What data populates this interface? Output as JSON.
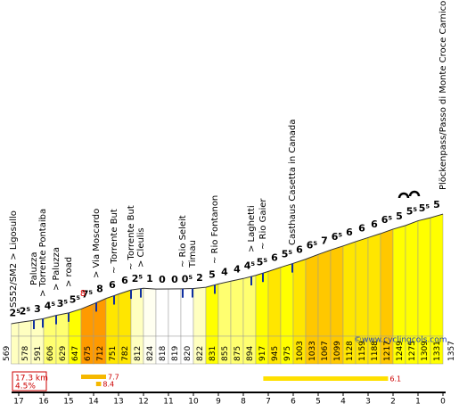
{
  "chart_data": {
    "type": "profile",
    "x": [
      17.3,
      17,
      16.5,
      16,
      15.5,
      15,
      14.5,
      14,
      13.5,
      13,
      12.5,
      12,
      11.5,
      11,
      10.5,
      10,
      9.5,
      9,
      8.5,
      8,
      7.5,
      7,
      6.5,
      6,
      5.5,
      5,
      4.5,
      4,
      3.5,
      3,
      2.5,
      2,
      1.5,
      1,
      0.5,
      0
    ],
    "elevations": [
      569,
      578,
      591,
      606,
      629,
      647,
      675,
      712,
      751,
      782,
      812,
      824,
      818,
      819,
      820,
      822,
      831,
      855,
      875,
      894,
      917,
      945,
      975,
      1003,
      1033,
      1067,
      1099,
      1128,
      1159,
      1188,
      1217,
      1249,
      1275,
      1309,
      1331,
      1357
    ],
    "gradients": [
      2.5,
      2.5,
      3,
      4.5,
      3.5,
      5.5,
      7.5,
      8,
      6,
      6,
      2.5,
      1,
      0,
      0,
      0.5,
      2,
      5,
      4,
      4,
      4.5,
      5.5,
      6,
      5.5,
      6,
      6.5,
      7,
      6.5,
      6,
      6,
      6,
      6.5,
      5,
      5.5,
      5.5,
      5
    ],
    "value_labels": [
      "2⁵",
      "2⁵",
      "3",
      "4⁵",
      "3⁵",
      "5⁵",
      "7⁵",
      "8",
      "6",
      "6",
      "2⁵",
      "1",
      "0",
      "0",
      "0⁵",
      "2",
      "5",
      "4",
      "4",
      "4⁵",
      "5⁵",
      "6",
      "5⁵",
      "6",
      "6⁵",
      "7",
      "6⁵",
      "6",
      "6",
      "6",
      "6⁵",
      "5",
      "5⁵",
      "5⁵",
      "5"
    ],
    "max_gradient": {
      "value": 8,
      "x": 14.5
    },
    "xlim": [
      17.3,
      0
    ],
    "xticks": [
      17,
      16,
      15,
      14,
      13,
      12,
      11,
      10,
      9,
      8,
      7,
      6,
      5,
      4,
      3,
      2,
      1,
      0
    ],
    "landmarks": [
      "SS52/SM2 > Ligosullo",
      "Paluzza",
      "> Torrente Pontaiba",
      "> Paluzza",
      "> road",
      "> Via Moscardo",
      "~ Torrente But",
      "~ Torrente But",
      "> Cleulis",
      "~ Rio Seleit",
      "Timau",
      "~ Rio Fontanon",
      "> Laghetti",
      "~ Rio Gaier",
      "Casthaus Casetta in Canada",
      "Plöckenpass/Passo di Monte Croce Carnico"
    ],
    "credit": "©www.cyclingcols.com",
    "distance": "17.3 km",
    "average_gradient": "4.5%",
    "steepest": [
      {
        "value": 7.7,
        "from": 14.5,
        "to": 13.5,
        "color": "#f5b800"
      },
      {
        "value": 8.4,
        "from": 13.9,
        "to": 13.7,
        "color": "#f5b800"
      },
      {
        "value": 6.1,
        "from": 7.2,
        "to": 2.2,
        "color": "#ffe000"
      }
    ]
  }
}
